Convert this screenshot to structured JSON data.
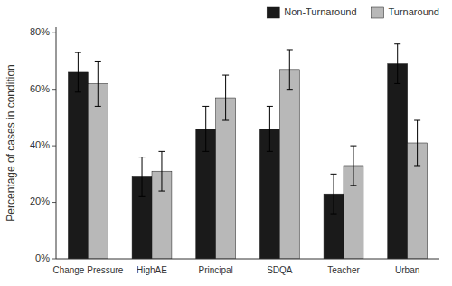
{
  "chart_data": {
    "type": "bar",
    "categories": [
      "Change Pressure",
      "HighAE",
      "Principal",
      "SDQA",
      "Teacher",
      "Urban"
    ],
    "series": [
      {
        "name": "Non-Turnaround",
        "color": "#1a1a1a",
        "values": [
          0.66,
          0.29,
          0.46,
          0.46,
          0.23,
          0.69
        ],
        "errors": [
          0.07,
          0.07,
          0.08,
          0.08,
          0.07,
          0.07
        ]
      },
      {
        "name": "Turnaround",
        "color": "#b8b8b8",
        "values": [
          0.62,
          0.31,
          0.57,
          0.67,
          0.33,
          0.41
        ],
        "errors": [
          0.08,
          0.07,
          0.08,
          0.07,
          0.07,
          0.08
        ]
      }
    ],
    "ylabel": "Percentage of cases in condition",
    "ylim": [
      0.0,
      0.82
    ],
    "yticks": [
      {
        "value": 0.0,
        "label": "0%"
      },
      {
        "value": 0.2,
        "label": "20%"
      },
      {
        "value": 0.4,
        "label": "40%"
      },
      {
        "value": 0.6,
        "label": "60%"
      },
      {
        "value": 0.8,
        "label": "80%"
      }
    ],
    "legend": "upper right",
    "grid": false
  }
}
